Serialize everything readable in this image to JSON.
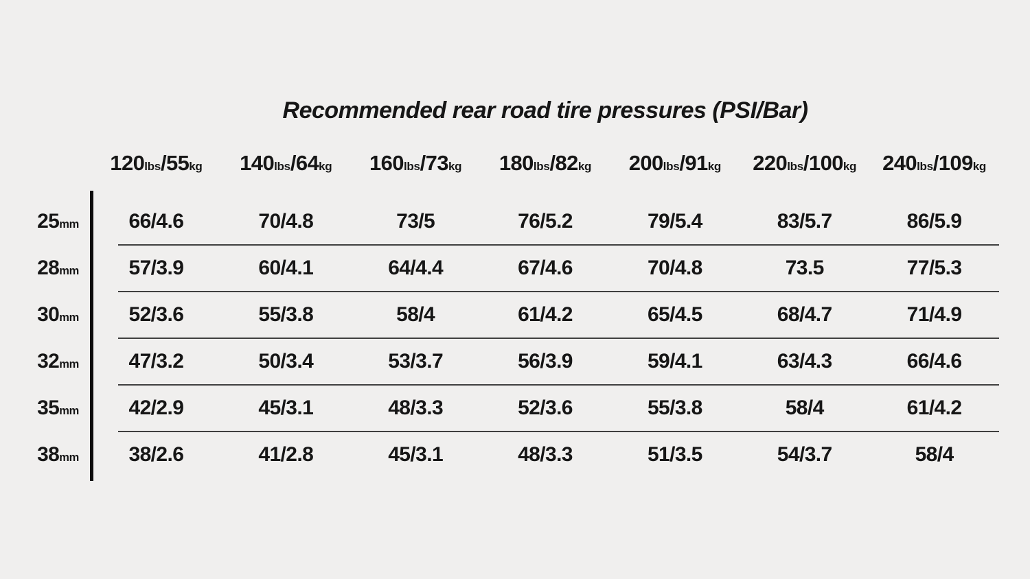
{
  "chart_data": {
    "type": "table",
    "title": "Recommended rear road tire pressures (PSI/Bar)",
    "units": {
      "lbs": "lbs",
      "kg": "kg",
      "mm": "mm"
    },
    "columns": [
      {
        "lbs": "120",
        "kg": "55"
      },
      {
        "lbs": "140",
        "kg": "64"
      },
      {
        "lbs": "160",
        "kg": "73"
      },
      {
        "lbs": "180",
        "kg": "82"
      },
      {
        "lbs": "200",
        "kg": "91"
      },
      {
        "lbs": "220",
        "kg": "100"
      },
      {
        "lbs": "240",
        "kg": "109"
      }
    ],
    "rows": [
      {
        "width": "25",
        "values": [
          "66/4.6",
          "70/4.8",
          "73/5",
          "76/5.2",
          "79/5.4",
          "83/5.7",
          "86/5.9"
        ]
      },
      {
        "width": "28",
        "values": [
          "57/3.9",
          "60/4.1",
          "64/4.4",
          "67/4.6",
          "70/4.8",
          "73.5",
          "77/5.3"
        ]
      },
      {
        "width": "30",
        "values": [
          "52/3.6",
          "55/3.8",
          "58/4",
          "61/4.2",
          "65/4.5",
          "68/4.7",
          "71/4.9"
        ]
      },
      {
        "width": "32",
        "values": [
          "47/3.2",
          "50/3.4",
          "53/3.7",
          "56/3.9",
          "59/4.1",
          "63/4.3",
          "66/4.6"
        ]
      },
      {
        "width": "35",
        "values": [
          "42/2.9",
          "45/3.1",
          "48/3.3",
          "52/3.6",
          "55/3.8",
          "58/4",
          "61/4.2"
        ]
      },
      {
        "width": "38",
        "values": [
          "38/2.6",
          "41/2.8",
          "45/3.1",
          "48/3.3",
          "51/3.5",
          "54/3.7",
          "58/4"
        ]
      }
    ]
  }
}
